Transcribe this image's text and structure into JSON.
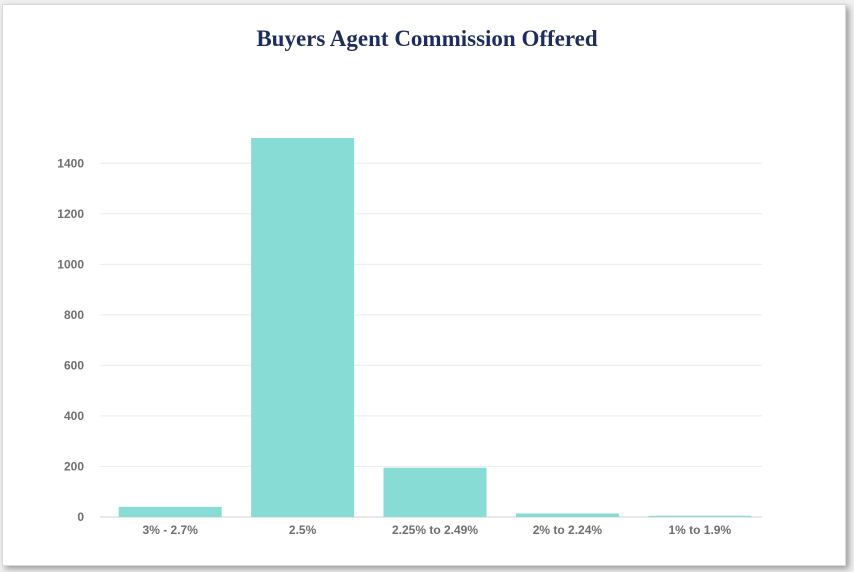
{
  "chart_data": {
    "type": "bar",
    "title": "Buyers Agent Commission Offered",
    "xlabel": "",
    "ylabel": "",
    "categories": [
      "3% - 2.7%",
      "2.5%",
      "2.25% to 2.49%",
      "2% to 2.24%",
      "1% to 1.9%"
    ],
    "values": [
      40,
      1500,
      195,
      14,
      5
    ],
    "ylim": [
      0,
      1500
    ],
    "yticks": [
      0,
      200,
      400,
      600,
      800,
      1000,
      1200,
      1400
    ],
    "grid": true,
    "legend": "none",
    "bar_color": "#88dcd6"
  }
}
